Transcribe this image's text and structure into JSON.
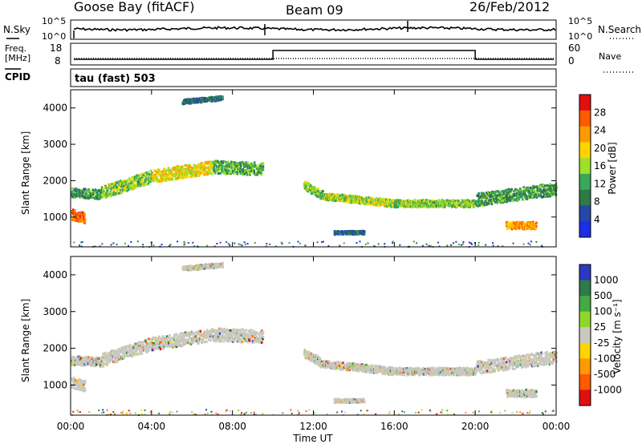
{
  "header": {
    "station": "Goose Bay (fitACF)",
    "beam": "Beam 09",
    "date": "26/Feb/2012"
  },
  "panels": {
    "nsky_label": "N.Sky",
    "nsearch_label": "N.Search",
    "freq_label_1": "Freq.",
    "freq_label_2": "[MHz]",
    "nave_label": "Nave",
    "cpid_label": "CPID",
    "cpid_value": "tau (fast) 503",
    "noise_ticks_left": [
      "10^5",
      "10^0"
    ],
    "noise_ticks_right": [
      "10^5",
      "10^0"
    ],
    "freq_ticks": [
      "18",
      "8"
    ],
    "nave_ticks": [
      "60",
      "0"
    ]
  },
  "colorbars": {
    "power": {
      "title": "Power [dB]",
      "ticks": [
        "28",
        "24",
        "20",
        "16",
        "12",
        "8",
        "4"
      ],
      "colors": [
        "#e01010",
        "#ff5a00",
        "#ff9a00",
        "#ffd400",
        "#9fe02a",
        "#3aa858",
        "#2e7a48",
        "#2548a8",
        "#1b2ee8"
      ]
    },
    "velocity": {
      "title": "Velocity [m s⁻¹]",
      "ticks": [
        "1000",
        "500",
        "100",
        "25",
        "-25",
        "-100",
        "-500",
        "-1000"
      ],
      "colors": [
        "#2a3ac0",
        "#2e7a48",
        "#44aa44",
        "#8fd62a",
        "#c8c8c0",
        "#ffd400",
        "#ff9a00",
        "#ff5a00",
        "#e01010"
      ]
    }
  },
  "chart_data": {
    "type": "heatmap",
    "xlabel": "Time UT",
    "ylabel": "Slant Range [km]",
    "x_ticks": [
      "00:00",
      "04:00",
      "08:00",
      "12:00",
      "16:00",
      "20:00",
      "00:00"
    ],
    "xlim_hours": [
      0,
      24
    ],
    "ylim_km": [
      180,
      4500
    ],
    "y_ticks": [
      "1000",
      "2000",
      "3000",
      "4000"
    ],
    "echo_bands": [
      {
        "start_h": 0.0,
        "end_h": 1.5,
        "range_start_km": 1700,
        "range_end_km": 1650,
        "width_km": 250,
        "power_db": 10
      },
      {
        "start_h": 1.5,
        "end_h": 4.0,
        "range_start_km": 1700,
        "range_end_km": 2150,
        "width_km": 350,
        "power_db": 14
      },
      {
        "start_h": 4.0,
        "end_h": 7.0,
        "range_start_km": 2150,
        "range_end_km": 2400,
        "width_km": 350,
        "power_db": 18
      },
      {
        "start_h": 7.0,
        "end_h": 9.5,
        "range_start_km": 2400,
        "range_end_km": 2350,
        "width_km": 350,
        "power_db": 12
      },
      {
        "start_h": 11.5,
        "end_h": 12.5,
        "range_start_km": 1900,
        "range_end_km": 1600,
        "width_km": 250,
        "power_db": 14
      },
      {
        "start_h": 12.5,
        "end_h": 16.0,
        "range_start_km": 1600,
        "range_end_km": 1400,
        "width_km": 200,
        "power_db": 16
      },
      {
        "start_h": 16.0,
        "end_h": 20.0,
        "range_start_km": 1400,
        "range_end_km": 1400,
        "width_km": 200,
        "power_db": 14
      },
      {
        "start_h": 20.0,
        "end_h": 24.0,
        "range_start_km": 1500,
        "range_end_km": 1800,
        "width_km": 350,
        "power_db": 10
      },
      {
        "start_h": 21.5,
        "end_h": 23.0,
        "range_start_km": 800,
        "range_end_km": 800,
        "width_km": 200,
        "power_db": 22
      },
      {
        "start_h": 0.0,
        "end_h": 0.7,
        "range_start_km": 1100,
        "range_end_km": 1000,
        "width_km": 300,
        "power_db": 26
      },
      {
        "start_h": 5.5,
        "end_h": 7.5,
        "range_start_km": 4200,
        "range_end_km": 4300,
        "width_km": 120,
        "power_db": 6
      },
      {
        "start_h": 13.0,
        "end_h": 14.5,
        "range_start_km": 600,
        "range_end_km": 600,
        "width_km": 100,
        "power_db": 6
      }
    ],
    "freq_step": {
      "low_until_h": 10.0,
      "high_until_h": 20.0
    },
    "scale": "log noise, linear range"
  }
}
